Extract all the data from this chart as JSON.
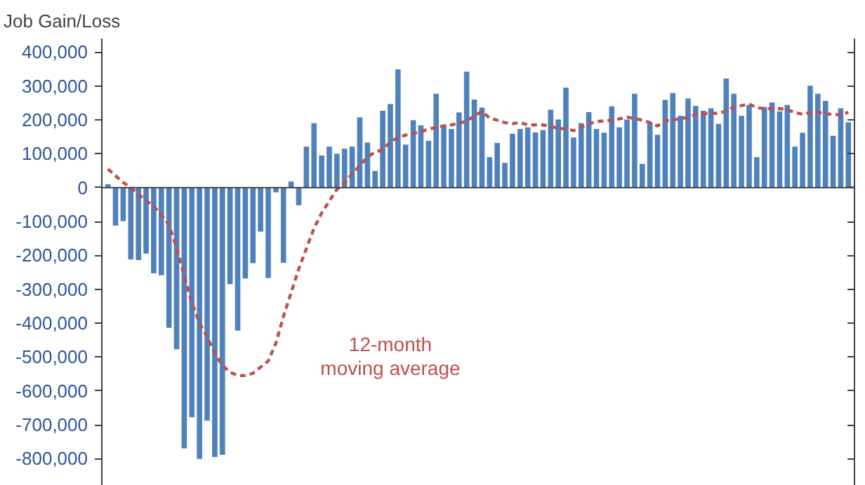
{
  "chart_data": {
    "type": "bar",
    "ylabel": "Job Gain/Loss",
    "categories": [
      null,
      null,
      null,
      null,
      null,
      null,
      null,
      null,
      null,
      null,
      null,
      null,
      null,
      null,
      null,
      null,
      null,
      null,
      null,
      null,
      null,
      null,
      null,
      null,
      null,
      null,
      null,
      null,
      null,
      null,
      null,
      null,
      null,
      null,
      null,
      null,
      null,
      null,
      null,
      null,
      null,
      null,
      null,
      null,
      null,
      null,
      null,
      null,
      null,
      null,
      null,
      null,
      null,
      null,
      null,
      null,
      null,
      null,
      null,
      null,
      null,
      null,
      null,
      null,
      null,
      null,
      null,
      null,
      null,
      null,
      null,
      null,
      null,
      null,
      null,
      null,
      null,
      null,
      null,
      null,
      null,
      null,
      null,
      null,
      null,
      null,
      null,
      null,
      null,
      null,
      null,
      null,
      null,
      null,
      null,
      null,
      null,
      null
    ],
    "series": [
      {
        "color": "#4f81bd",
        "values": [
          10000,
          -112000,
          -99000,
          -212000,
          -214000,
          -195000,
          -253000,
          -259000,
          -414000,
          -477000,
          -770000,
          -678000,
          -801000,
          -688000,
          -795000,
          -789000,
          -285000,
          -422000,
          -268000,
          -223000,
          -130000,
          -267000,
          -14000,
          -222000,
          18000,
          -52000,
          121000,
          190000,
          95000,
          121000,
          100000,
          115000,
          121000,
          207000,
          133000,
          49000,
          227000,
          247000,
          349000,
          127000,
          199000,
          184000,
          138000,
          277000,
          186000,
          173000,
          222000,
          342000,
          260000,
          236000,
          90000,
          132000,
          73000,
          159000,
          173000,
          178000,
          163000,
          170000,
          230000,
          201000,
          295000,
          148000,
          190000,
          223000,
          173000,
          162000,
          240000,
          178000,
          201000,
          277000,
          70000,
          192000,
          156000,
          259000,
          279000,
          212000,
          263000,
          241000,
          227000,
          234000,
          188000,
          322000,
          277000,
          212000,
          244000,
          90000,
          238000,
          251000,
          225000,
          244000,
          121000,
          162000,
          301000,
          277000,
          256000,
          153000,
          234000,
          193000
        ]
      },
      {
        "type": "line",
        "name": "12-month moving average",
        "color": "#c0504d",
        "line_style": "dashed",
        "values": [
          55000,
          35000,
          15000,
          0,
          -20000,
          -38000,
          -55000,
          -80000,
          -110000,
          -178000,
          -260000,
          -340000,
          -400000,
          -440000,
          -490000,
          -525000,
          -545000,
          -555000,
          -555000,
          -548000,
          -530000,
          -512000,
          -460000,
          -380000,
          -310000,
          -240000,
          -180000,
          -120000,
          -75000,
          -40000,
          -5000,
          15000,
          40000,
          65000,
          90000,
          105000,
          112000,
          135000,
          148000,
          155000,
          160000,
          165000,
          172000,
          178000,
          182000,
          185000,
          190000,
          196000,
          212000,
          225000,
          205000,
          199000,
          192000,
          189000,
          192000,
          185000,
          185000,
          185000,
          181000,
          175000,
          173000,
          168000,
          178000,
          188000,
          195000,
          197000,
          199000,
          203000,
          208000,
          204000,
          199000,
          192000,
          182000,
          197000,
          200000,
          203000,
          208000,
          215000,
          218000,
          219000,
          219000,
          226000,
          238000,
          242000,
          247000,
          236000,
          233000,
          233000,
          233000,
          230000,
          222000,
          216000,
          222000,
          222000,
          219000,
          215000,
          216000,
          222000
        ]
      }
    ],
    "ylim": [
      -880000,
      440000
    ],
    "yticks": [
      {
        "value": -800000,
        "label": "-800,000"
      },
      {
        "value": -700000,
        "label": "-700,000"
      },
      {
        "value": -600000,
        "label": "-600,000"
      },
      {
        "value": -500000,
        "label": "-500,000"
      },
      {
        "value": -400000,
        "label": "-400,000"
      },
      {
        "value": -300000,
        "label": "-300,000"
      },
      {
        "value": -200000,
        "label": "-200,000"
      },
      {
        "value": -100000,
        "label": "-100,000"
      },
      0,
      {
        "value": 100000,
        "label": "100,000"
      },
      {
        "value": 200000,
        "label": "200,000"
      },
      {
        "value": 300000,
        "label": "300,000"
      },
      {
        "value": 400000,
        "label": "400,000"
      }
    ]
  }
}
